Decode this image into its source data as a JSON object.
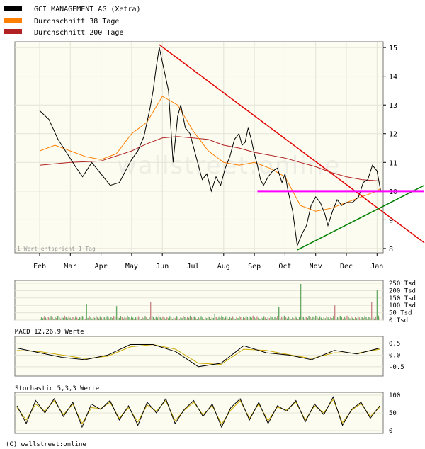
{
  "chart_data": [
    {
      "type": "line",
      "legend_placement": "top-left",
      "series": [
        {
          "name": "GCI MANAGEMENT AG (Xetra)",
          "color": "#000000"
        },
        {
          "name": "Durchschnitt 38 Tage",
          "color": "#ff7f00"
        },
        {
          "name": "Durchschnitt 200 Tage",
          "color": "#b22222"
        }
      ],
      "months": [
        "Feb",
        "Mar",
        "Apr",
        "May",
        "Jun",
        "Jul",
        "Aug",
        "Sep",
        "Oct",
        "Nov",
        "Dec",
        "Jan"
      ],
      "y_ticks": [
        8,
        9,
        10,
        11,
        12,
        13,
        14,
        15
      ],
      "ylim": [
        7.85,
        15.2
      ],
      "note": "1 Wert entspricht 1 Tag",
      "watermark": "wallstreet:online",
      "grid": true,
      "price_points": [
        [
          0,
          12.8
        ],
        [
          0.3,
          12.5
        ],
        [
          0.6,
          11.8
        ],
        [
          0.9,
          11.3
        ],
        [
          1.2,
          10.8
        ],
        [
          1.4,
          10.5
        ],
        [
          1.7,
          11.0
        ],
        [
          2.0,
          10.6
        ],
        [
          2.3,
          10.2
        ],
        [
          2.6,
          10.3
        ],
        [
          2.8,
          10.7
        ],
        [
          3.0,
          11.1
        ],
        [
          3.2,
          11.4
        ],
        [
          3.4,
          11.9
        ],
        [
          3.6,
          12.9
        ],
        [
          3.7,
          13.5
        ],
        [
          3.8,
          14.3
        ],
        [
          3.9,
          15.0
        ],
        [
          4.0,
          14.5
        ],
        [
          4.2,
          13.5
        ],
        [
          4.35,
          11.0
        ],
        [
          4.5,
          12.6
        ],
        [
          4.6,
          13.0
        ],
        [
          4.75,
          12.2
        ],
        [
          4.9,
          12.0
        ],
        [
          5.0,
          11.6
        ],
        [
          5.15,
          11.0
        ],
        [
          5.3,
          10.4
        ],
        [
          5.45,
          10.6
        ],
        [
          5.6,
          10.0
        ],
        [
          5.75,
          10.5
        ],
        [
          5.9,
          10.2
        ],
        [
          6.05,
          10.8
        ],
        [
          6.2,
          11.2
        ],
        [
          6.35,
          11.8
        ],
        [
          6.5,
          12.0
        ],
        [
          6.6,
          11.6
        ],
        [
          6.7,
          11.7
        ],
        [
          6.8,
          12.2
        ],
        [
          6.9,
          11.8
        ],
        [
          7.0,
          11.3
        ],
        [
          7.1,
          10.9
        ],
        [
          7.2,
          10.4
        ],
        [
          7.3,
          10.2
        ],
        [
          7.45,
          10.5
        ],
        [
          7.6,
          10.7
        ],
        [
          7.75,
          10.8
        ],
        [
          7.9,
          10.3
        ],
        [
          8.0,
          10.6
        ],
        [
          8.1,
          10.0
        ],
        [
          8.25,
          9.3
        ],
        [
          8.4,
          8.1
        ],
        [
          8.55,
          8.5
        ],
        [
          8.7,
          8.8
        ],
        [
          8.85,
          9.5
        ],
        [
          9.0,
          9.8
        ],
        [
          9.15,
          9.6
        ],
        [
          9.3,
          9.2
        ],
        [
          9.4,
          8.8
        ],
        [
          9.55,
          9.3
        ],
        [
          9.7,
          9.7
        ],
        [
          9.85,
          9.5
        ],
        [
          10.0,
          9.6
        ],
        [
          10.2,
          9.6
        ],
        [
          10.4,
          9.8
        ],
        [
          10.55,
          10.3
        ],
        [
          10.7,
          10.4
        ],
        [
          10.85,
          10.9
        ],
        [
          11.0,
          10.7
        ],
        [
          11.12,
          10.0
        ]
      ],
      "sma38_points": [
        [
          0,
          11.4
        ],
        [
          0.5,
          11.6
        ],
        [
          1.0,
          11.4
        ],
        [
          1.5,
          11.2
        ],
        [
          2.0,
          11.1
        ],
        [
          2.5,
          11.3
        ],
        [
          3.0,
          12.0
        ],
        [
          3.5,
          12.4
        ],
        [
          4.0,
          13.3
        ],
        [
          4.5,
          13.0
        ],
        [
          5.0,
          12.1
        ],
        [
          5.5,
          11.4
        ],
        [
          6.0,
          11.0
        ],
        [
          6.5,
          10.9
        ],
        [
          7.0,
          11.0
        ],
        [
          7.5,
          10.8
        ],
        [
          8.0,
          10.5
        ],
        [
          8.5,
          9.5
        ],
        [
          9.0,
          9.3
        ],
        [
          9.5,
          9.4
        ],
        [
          10.0,
          9.6
        ],
        [
          10.5,
          9.8
        ],
        [
          11.0,
          10.0
        ],
        [
          11.12,
          10.1
        ]
      ],
      "sma200_points": [
        [
          0,
          10.9
        ],
        [
          1.0,
          11.0
        ],
        [
          2.0,
          11.05
        ],
        [
          3.0,
          11.4
        ],
        [
          3.5,
          11.65
        ],
        [
          4.0,
          11.85
        ],
        [
          4.5,
          11.9
        ],
        [
          5.0,
          11.85
        ],
        [
          5.5,
          11.8
        ],
        [
          6.0,
          11.6
        ],
        [
          6.5,
          11.5
        ],
        [
          7.0,
          11.35
        ],
        [
          7.5,
          11.25
        ],
        [
          8.0,
          11.15
        ],
        [
          8.5,
          11.0
        ],
        [
          9.0,
          10.85
        ],
        [
          9.5,
          10.65
        ],
        [
          10.0,
          10.5
        ],
        [
          10.5,
          10.4
        ],
        [
          11.12,
          10.35
        ]
      ],
      "trendlines": [
        {
          "name": "downtrend",
          "color": "#e00000",
          "points": [
            [
              3.9,
              15.1
            ],
            [
              12.6,
              8.2
            ]
          ]
        },
        {
          "name": "uptrend",
          "color": "#008000",
          "points": [
            [
              8.4,
              7.95
            ],
            [
              12.6,
              10.2
            ]
          ]
        },
        {
          "name": "resistance",
          "color": "#ff00ff",
          "points": [
            [
              7.1,
              10.0
            ],
            [
              12.6,
              10.0
            ]
          ]
        }
      ]
    },
    {
      "type": "bar",
      "name": "volume",
      "y_ticks": [
        "250 Tsd",
        "200 Tsd",
        "150 Tsd",
        "100 Tsd",
        "50 Tsd",
        "0 Tsd"
      ],
      "ylim": [
        0,
        250
      ],
      "up_color": "#66aa66",
      "down_color": "#cc8888",
      "spikes": [
        {
          "x": 1.5,
          "value": 110
        },
        {
          "x": 2.5,
          "value": 95
        },
        {
          "x": 3.6,
          "value": 125
        },
        {
          "x": 5.7,
          "value": 40
        },
        {
          "x": 7.8,
          "value": 90
        },
        {
          "x": 8.5,
          "value": 245
        },
        {
          "x": 9.6,
          "value": 100
        },
        {
          "x": 10.8,
          "value": 120
        },
        {
          "x": 11.0,
          "value": 205
        }
      ]
    },
    {
      "type": "line",
      "name": "macd",
      "title": "MACD 12,26,9 Werte",
      "y_ticks": [
        "0.5",
        "0.0",
        "-0.5"
      ],
      "ylim": [
        -0.9,
        0.8
      ],
      "series": [
        {
          "name": "MACD",
          "color": "#000000",
          "values": [
            0.3,
            0.1,
            -0.1,
            -0.2,
            0.0,
            0.45,
            0.45,
            0.15,
            -0.5,
            -0.35,
            0.4,
            0.1,
            0.0,
            -0.2,
            0.2,
            0.05,
            0.3
          ]
        },
        {
          "name": "Signal",
          "color": "#ccaa00",
          "values": [
            0.2,
            0.15,
            0.0,
            -0.15,
            -0.05,
            0.35,
            0.45,
            0.25,
            -0.35,
            -0.4,
            0.25,
            0.2,
            0.02,
            -0.15,
            0.1,
            0.08,
            0.25
          ]
        }
      ],
      "x_steps": 16
    },
    {
      "type": "line",
      "name": "stochastic",
      "title": "Stochastic 5,3,3 Werte",
      "y_ticks": [
        "100",
        "50",
        "0"
      ],
      "ylim": [
        0,
        100
      ],
      "series": [
        {
          "name": "K",
          "color": "#000000",
          "values": [
            70,
            20,
            85,
            50,
            90,
            40,
            80,
            10,
            75,
            60,
            85,
            30,
            70,
            15,
            80,
            50,
            90,
            20,
            60,
            85,
            40,
            75,
            10,
            65,
            90,
            30,
            80,
            20,
            70,
            55,
            85,
            25,
            75,
            45,
            95,
            15,
            60,
            80,
            35,
            70
          ]
        },
        {
          "name": "D",
          "color": "#ccaa00",
          "values": [
            65,
            30,
            75,
            55,
            85,
            45,
            75,
            20,
            65,
            62,
            80,
            35,
            65,
            25,
            72,
            55,
            85,
            28,
            58,
            80,
            45,
            70,
            18,
            58,
            85,
            35,
            75,
            28,
            66,
            58,
            80,
            30,
            70,
            50,
            88,
            22,
            58,
            76,
            40,
            66
          ]
        }
      ],
      "x_steps": 39
    }
  ],
  "footer": "(C) wallstreet:online"
}
